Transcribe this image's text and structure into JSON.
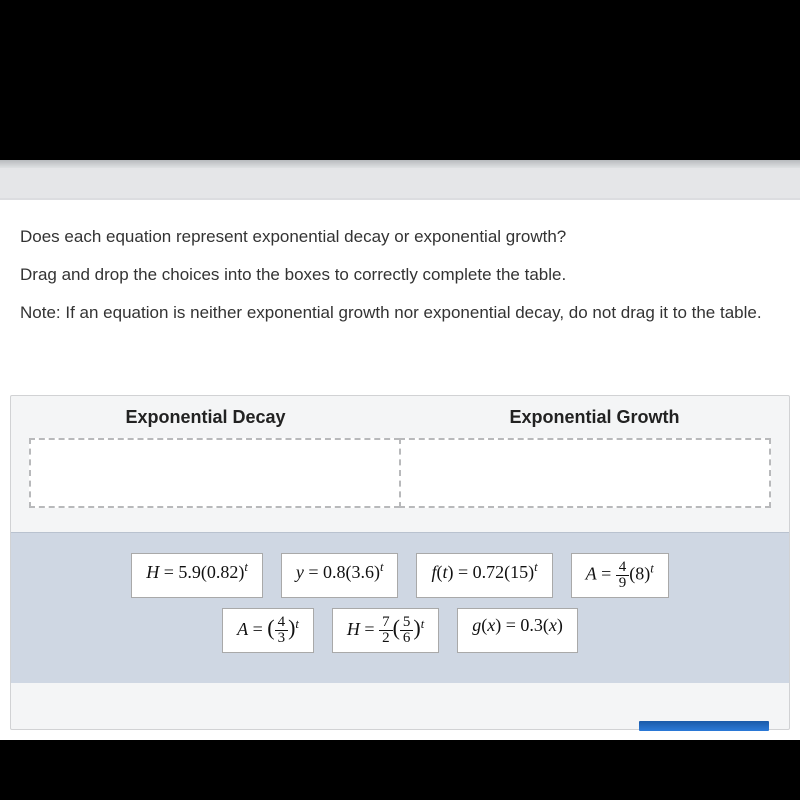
{
  "question": {
    "line1": "Does each equation represent exponential decay or exponential growth?",
    "line2": "Drag and drop the choices into the boxes to correctly complete the table.",
    "line3_prefix": "Note:",
    "line3": " If an equation is neither exponential growth nor exponential decay, do not drag it to the table."
  },
  "columns": {
    "decay": "Exponential Decay",
    "growth": "Exponential Growth"
  },
  "chips": {
    "row1": [
      {
        "id": "eq-H-59-082",
        "prefix": "H = 5.9(0.82)",
        "exp": "t"
      },
      {
        "id": "eq-y-08-36",
        "prefix": "y = 0.8(3.6)",
        "exp": "t"
      },
      {
        "id": "eq-ft-072-15",
        "prefix": "f(t) = 0.72(15)",
        "exp": "t"
      },
      {
        "id": "eq-A-49-8",
        "frac_num": "4",
        "frac_den": "9",
        "label": "A = ",
        "base": "(8)",
        "exp": "t"
      }
    ],
    "row2": [
      {
        "id": "eq-A-43",
        "label": "A = ",
        "paren_frac_num": "4",
        "paren_frac_den": "3",
        "exp": "t"
      },
      {
        "id": "eq-H-72-56",
        "label": "H = ",
        "pre_frac_num": "7",
        "pre_frac_den": "2",
        "paren_frac_num": "5",
        "paren_frac_den": "6",
        "exp": "t"
      },
      {
        "id": "eq-gx-03x",
        "prefix": "g(x) = 0.3(x)"
      }
    ]
  },
  "styling": {
    "chip_bg": "#ffffff",
    "chip_border": "#a9a9a9",
    "source_bg": "#cfd7e3",
    "panel_bg": "#f4f5f6",
    "dashed_border": "#b8b9bb"
  }
}
